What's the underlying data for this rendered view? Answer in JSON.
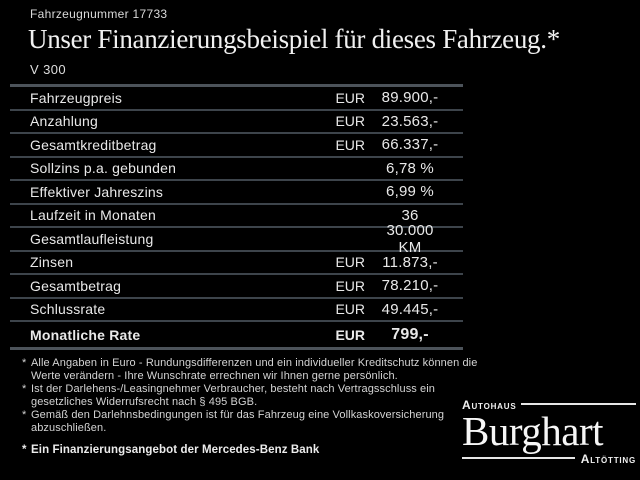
{
  "header": {
    "vehicle_number": "Fahrzeugnummer 17733",
    "title": "Unser Finanzierungsbeispiel für dieses Fahrzeug.*",
    "model": "V 300"
  },
  "table": {
    "rows": [
      {
        "label": "Fahrzeugpreis",
        "currency": "EUR",
        "value": "89.900,-"
      },
      {
        "label": "Anzahlung",
        "currency": "EUR",
        "value": "23.563,-"
      },
      {
        "label": "Gesamtkreditbetrag",
        "currency": "EUR",
        "value": "66.337,-"
      },
      {
        "label": "Sollzins p.a. gebunden",
        "currency": "",
        "value": "6,78 %"
      },
      {
        "label": "Effektiver Jahreszins",
        "currency": "",
        "value": "6,99 %"
      },
      {
        "label": "Laufzeit in Monaten",
        "currency": "",
        "value": "36"
      },
      {
        "label": "Gesamtlaufleistung",
        "currency": "",
        "value": "30.000 KM"
      },
      {
        "label": "Zinsen",
        "currency": "EUR",
        "value": "11.873,-"
      },
      {
        "label": "Gesamtbetrag",
        "currency": "EUR",
        "value": "78.210,-"
      },
      {
        "label": "Schlussrate",
        "currency": "EUR",
        "value": "49.445,-"
      },
      {
        "label": "Monatliche Rate",
        "currency": "EUR",
        "value": "799,-"
      }
    ]
  },
  "footnotes": {
    "items": [
      {
        "marker": "*",
        "text": "Alle Angaben in Euro - Rundungsdifferenzen und ein individueller Kreditschutz können die Werte verändern - Ihre Wunschrate errechnen wir Ihnen gerne persönlich."
      },
      {
        "marker": "*",
        "text": "Ist der Darlehens-/Leasingnehmer Verbraucher, besteht nach Vertragsschluss ein gesetzliches Widerrufsrecht nach § 495 BGB."
      },
      {
        "marker": "*",
        "text": "Gemäß den Darlehnsbedingungen ist für das Fahrzeug eine Vollkaskoversicherung abzuschließen."
      },
      {
        "marker": "*",
        "text": "Ein Finanzierungsangebot der Mercedes-Benz Bank"
      }
    ]
  },
  "dealer": {
    "prefix": "Autohaus",
    "name": "Burghart",
    "city": "Altötting"
  },
  "colors": {
    "background": "#000000",
    "text": "#e8e8e8",
    "separator": "#3d444b"
  }
}
